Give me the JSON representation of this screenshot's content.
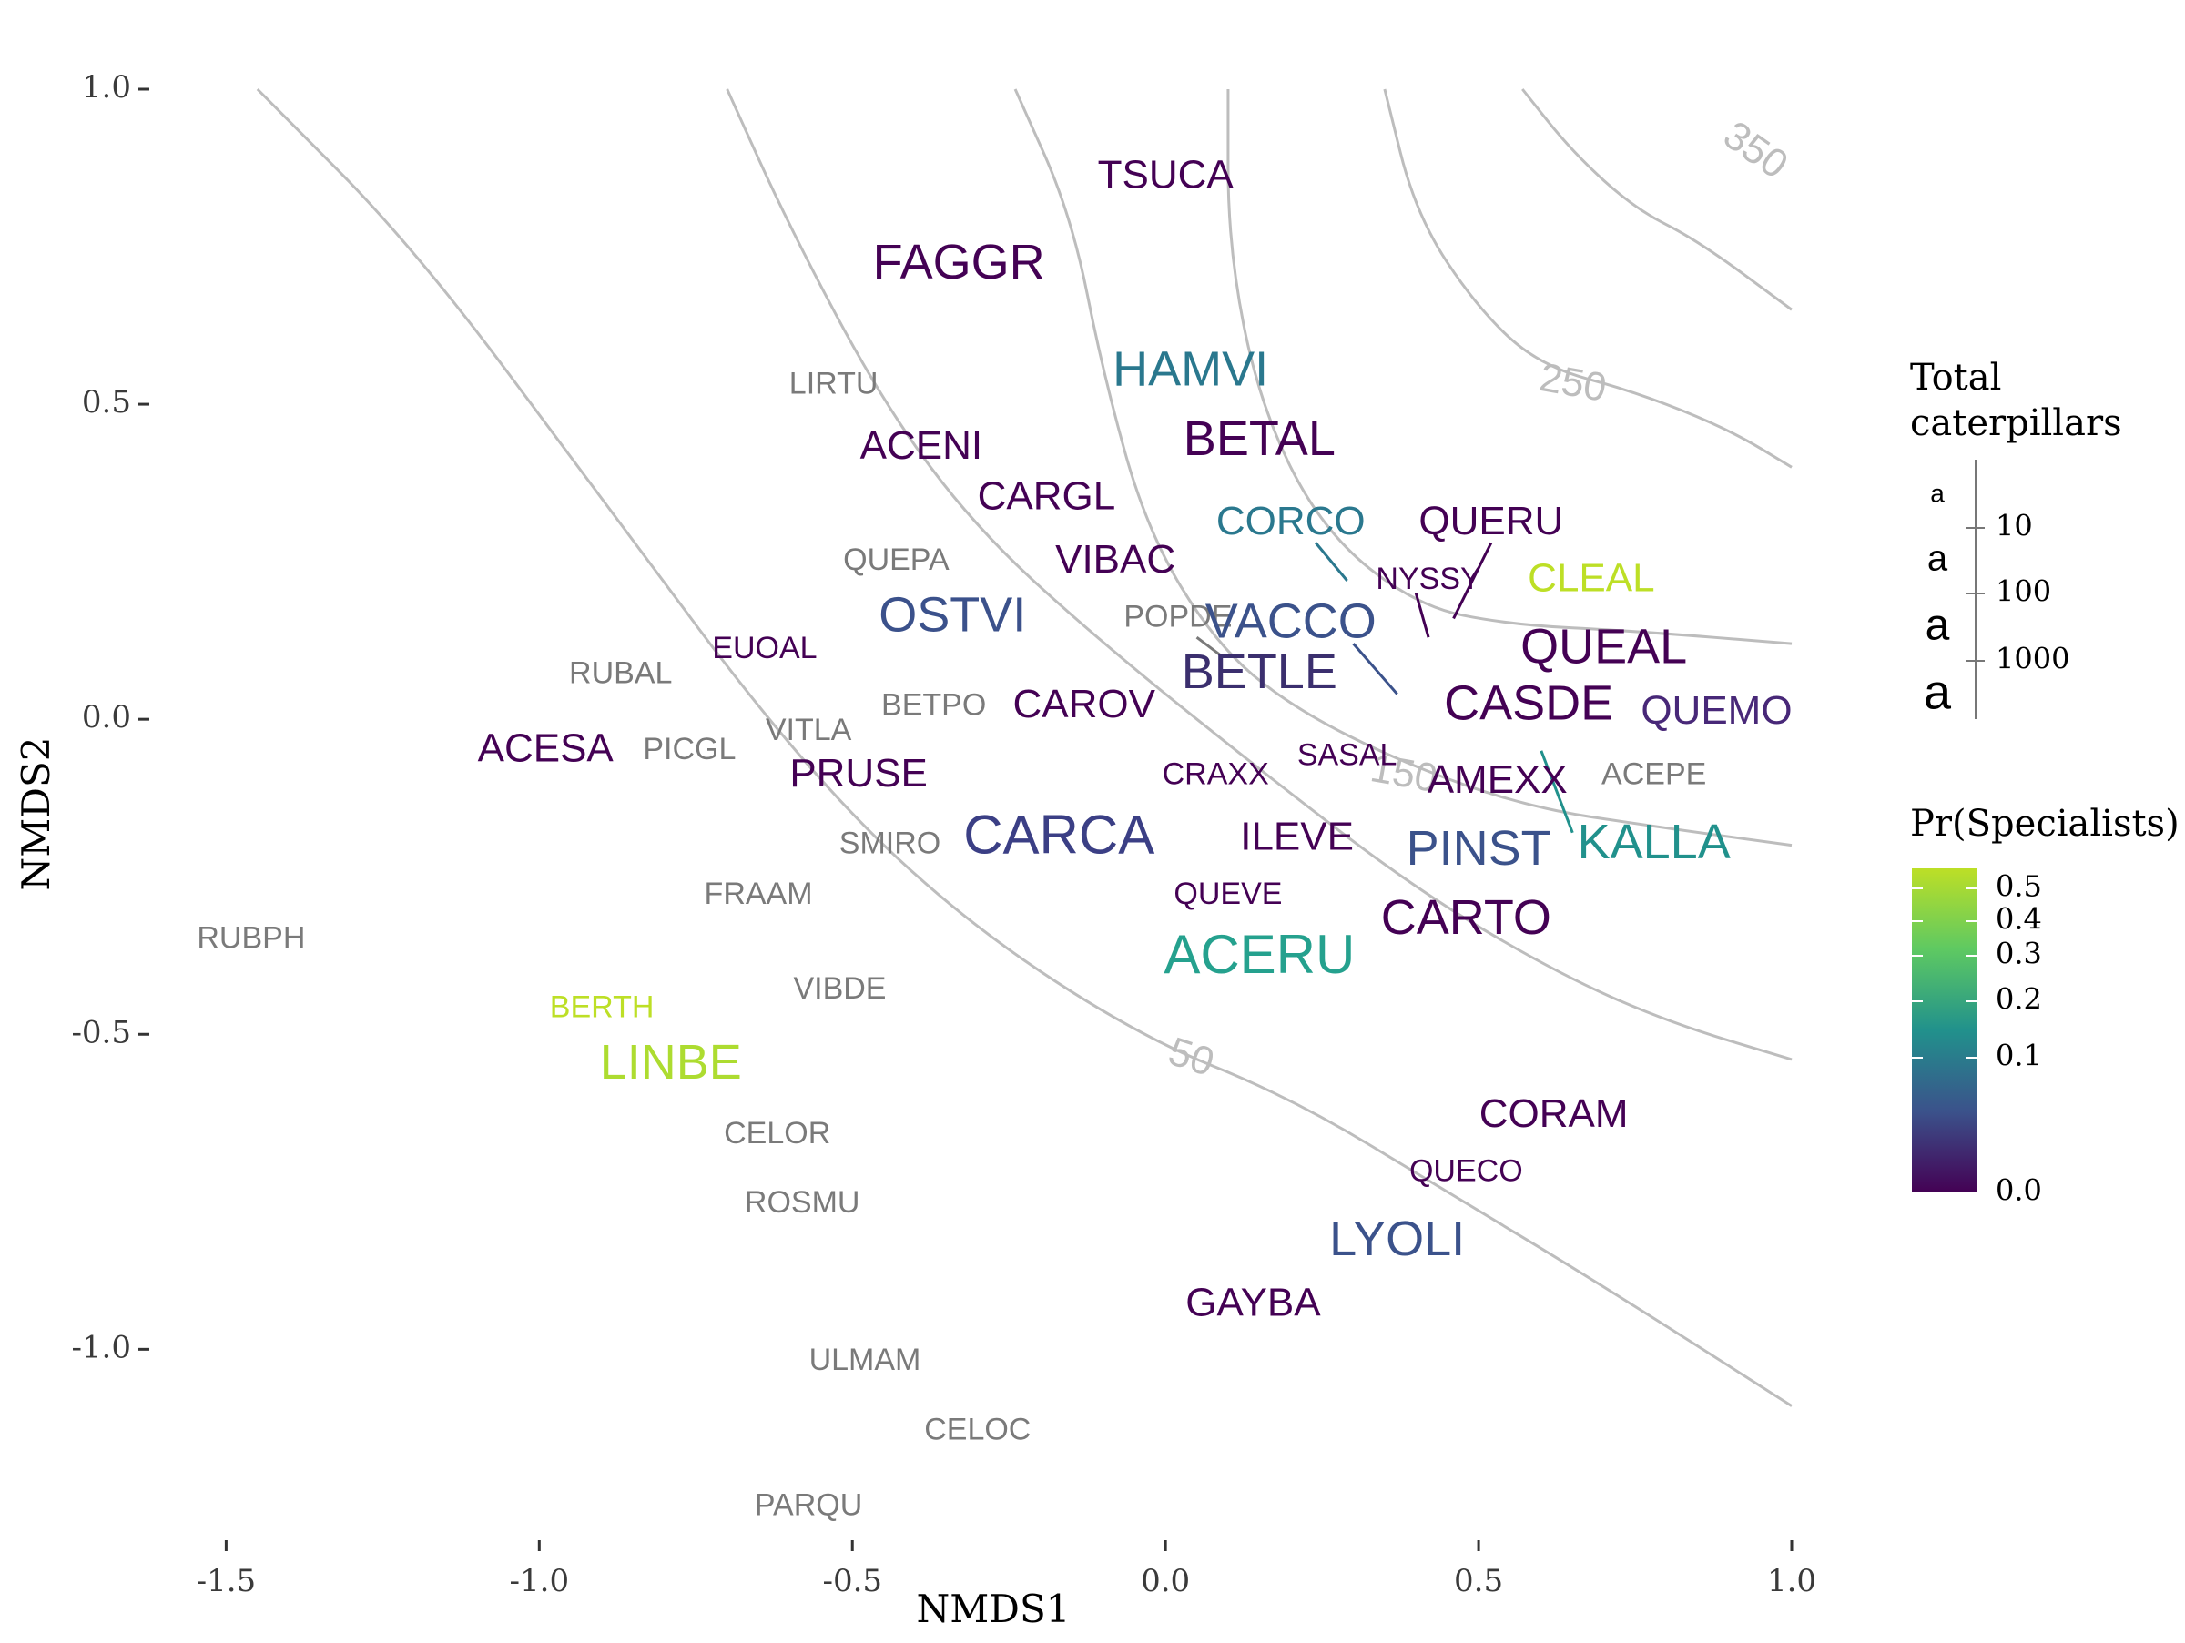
{
  "chart_data": {
    "type": "scatter",
    "xlabel": "NMDS1",
    "ylabel": "NMDS2",
    "xlim": [
      -1.55,
      1.0
    ],
    "ylim": [
      -1.3,
      1.0
    ],
    "xticks": [
      -1.5,
      -1.0,
      -0.5,
      0.0,
      0.5,
      1.0
    ],
    "xtick_labels": [
      "-1.5",
      "-1.0",
      "-0.5",
      "0.0",
      "0.5",
      "1.0"
    ],
    "yticks": [
      1.0,
      0.5,
      0.0,
      -0.5,
      -1.0
    ],
    "ytick_labels": [
      "1.0",
      "0.5",
      "0.0",
      "-0.5",
      "-1.0"
    ],
    "grid": false,
    "points": [
      {
        "label": "TSUCA",
        "x": 0.0,
        "y": 0.86,
        "size": 10,
        "color": "#440154"
      },
      {
        "label": "FAGGR",
        "x": -0.33,
        "y": 0.72,
        "size": 100,
        "color": "#440154"
      },
      {
        "label": "HAMVI",
        "x": 0.04,
        "y": 0.55,
        "size": 100,
        "color": "#2a788e"
      },
      {
        "label": "LIRTU",
        "x": -0.53,
        "y": 0.53,
        "color": "#7a7a7a"
      },
      {
        "label": "BETAL",
        "x": 0.15,
        "y": 0.44,
        "size": 100,
        "color": "#440154"
      },
      {
        "label": "ACENI",
        "x": -0.39,
        "y": 0.43,
        "size": 10,
        "color": "#440154"
      },
      {
        "label": "CARGL",
        "x": -0.19,
        "y": 0.35,
        "size": 10,
        "color": "#440154"
      },
      {
        "label": "CORCO",
        "x": 0.2,
        "y": 0.31,
        "size": 10,
        "color": "#2a788e"
      },
      {
        "label": "QUERU",
        "x": 0.52,
        "y": 0.31,
        "size": 10,
        "color": "#440154"
      },
      {
        "label": "QUEPA",
        "x": -0.43,
        "y": 0.25,
        "color": "#7a7a7a"
      },
      {
        "label": "VIBAC",
        "x": -0.08,
        "y": 0.25,
        "size": 10,
        "color": "#440154"
      },
      {
        "label": "NYSSY",
        "x": 0.42,
        "y": 0.22,
        "size": 1,
        "color": "#440154"
      },
      {
        "label": "CLEAL",
        "x": 0.68,
        "y": 0.22,
        "size": 10,
        "color": "#bddf26"
      },
      {
        "label": "OSTVI",
        "x": -0.34,
        "y": 0.16,
        "size": 100,
        "color": "#3b518b"
      },
      {
        "label": "POPDE",
        "x": 0.02,
        "y": 0.16,
        "color": "#7a7a7a"
      },
      {
        "label": "VACCO",
        "x": 0.2,
        "y": 0.15,
        "size": 100,
        "color": "#3b528b"
      },
      {
        "label": "QUEAL",
        "x": 0.7,
        "y": 0.11,
        "size": 100,
        "color": "#440154"
      },
      {
        "label": "EUOAL",
        "x": -0.64,
        "y": 0.11,
        "size": 1,
        "color": "#440154"
      },
      {
        "label": "RUBAL",
        "x": -0.87,
        "y": 0.07,
        "color": "#7a7a7a"
      },
      {
        "label": "BETLE",
        "x": 0.15,
        "y": 0.07,
        "size": 100,
        "color": "#3b2f6e"
      },
      {
        "label": "CASDE",
        "x": 0.58,
        "y": 0.02,
        "size": 100,
        "color": "#440154"
      },
      {
        "label": "CAROV",
        "x": -0.13,
        "y": 0.02,
        "size": 10,
        "color": "#440154"
      },
      {
        "label": "BETPO",
        "x": -0.37,
        "y": 0.02,
        "color": "#7a7a7a"
      },
      {
        "label": "QUEMO",
        "x": 0.88,
        "y": 0.01,
        "size": 10,
        "color": "#482878"
      },
      {
        "label": "VITLA",
        "x": -0.57,
        "y": -0.02,
        "color": "#7a7a7a"
      },
      {
        "label": "ACESA",
        "x": -0.99,
        "y": -0.05,
        "size": 10,
        "color": "#440154"
      },
      {
        "label": "PICGL",
        "x": -0.76,
        "y": -0.05,
        "color": "#7a7a7a"
      },
      {
        "label": "SASAL",
        "x": 0.29,
        "y": -0.06,
        "size": 1,
        "color": "#440154"
      },
      {
        "label": "PRUSE",
        "x": -0.49,
        "y": -0.09,
        "size": 10,
        "color": "#440154"
      },
      {
        "label": "CRAXX",
        "x": 0.08,
        "y": -0.09,
        "size": 1,
        "color": "#440154"
      },
      {
        "label": "AMEXX",
        "x": 0.53,
        "y": -0.1,
        "size": 10,
        "color": "#440154"
      },
      {
        "label": "ACEPE",
        "x": 0.78,
        "y": -0.09,
        "color": "#7a7a7a"
      },
      {
        "label": "CARCA",
        "x": -0.17,
        "y": -0.19,
        "size": 1000,
        "color": "#3b3f85"
      },
      {
        "label": "SMIRO",
        "x": -0.44,
        "y": -0.2,
        "color": "#7a7a7a"
      },
      {
        "label": "ILEVE",
        "x": 0.21,
        "y": -0.19,
        "size": 10,
        "color": "#440154"
      },
      {
        "label": "PINST",
        "x": 0.5,
        "y": -0.21,
        "size": 100,
        "color": "#3b528b"
      },
      {
        "label": "KALLA",
        "x": 0.78,
        "y": -0.2,
        "size": 100,
        "color": "#21918c"
      },
      {
        "label": "FRAAM",
        "x": -0.65,
        "y": -0.28,
        "color": "#7a7a7a"
      },
      {
        "label": "QUEVE",
        "x": 0.1,
        "y": -0.28,
        "size": 1,
        "color": "#440154"
      },
      {
        "label": "CARTO",
        "x": 0.48,
        "y": -0.32,
        "size": 100,
        "color": "#440154"
      },
      {
        "label": "ACERU",
        "x": 0.15,
        "y": -0.38,
        "size": 1000,
        "color": "#25a18e"
      },
      {
        "label": "RUBPH",
        "x": -1.46,
        "y": -0.35,
        "color": "#7a7a7a"
      },
      {
        "label": "VIBDE",
        "x": -0.52,
        "y": -0.43,
        "color": "#7a7a7a"
      },
      {
        "label": "BERTH",
        "x": -0.9,
        "y": -0.46,
        "size": 1,
        "color": "#bddf26"
      },
      {
        "label": "LINBE",
        "x": -0.79,
        "y": -0.55,
        "size": 100,
        "color": "#addc30"
      },
      {
        "label": "CORAM",
        "x": 0.62,
        "y": -0.63,
        "size": 10,
        "color": "#440154"
      },
      {
        "label": "CELOR",
        "x": -0.62,
        "y": -0.66,
        "color": "#7a7a7a"
      },
      {
        "label": "QUECO",
        "x": 0.48,
        "y": -0.72,
        "size": 1,
        "color": "#440154"
      },
      {
        "label": "ROSMU",
        "x": -0.58,
        "y": -0.77,
        "color": "#7a7a7a"
      },
      {
        "label": "LYOLI",
        "x": 0.37,
        "y": -0.83,
        "size": 100,
        "color": "#3b528b"
      },
      {
        "label": "GAYBA",
        "x": 0.14,
        "y": -0.93,
        "size": 10,
        "color": "#440154"
      },
      {
        "label": "ULMAM",
        "x": -0.48,
        "y": -1.02,
        "color": "#7a7a7a"
      },
      {
        "label": "CELOC",
        "x": -0.3,
        "y": -1.13,
        "color": "#7a7a7a"
      },
      {
        "label": "PARQU",
        "x": -0.57,
        "y": -1.25,
        "color": "#7a7a7a"
      }
    ],
    "leader_lines": [
      {
        "from": [
          0.24,
          0.28
        ],
        "to": [
          0.29,
          0.22
        ],
        "color": "#2a788e"
      },
      {
        "from": [
          0.52,
          0.28
        ],
        "to": [
          0.46,
          0.16
        ],
        "color": "#440154"
      },
      {
        "from": [
          0.4,
          0.2
        ],
        "to": [
          0.42,
          0.13
        ],
        "color": "#440154"
      },
      {
        "from": [
          0.3,
          0.12
        ],
        "to": [
          0.37,
          0.04
        ],
        "color": "#3b528b"
      },
      {
        "from": [
          0.05,
          0.13
        ],
        "to": [
          0.09,
          0.1
        ],
        "color": "#7a7a7a"
      },
      {
        "from": [
          0.6,
          -0.05
        ],
        "to": [
          0.65,
          -0.18
        ],
        "color": "#21918c"
      }
    ],
    "contours": [
      {
        "level": 50,
        "label": "50",
        "points": [
          [
            -1.45,
            1.0
          ],
          [
            -1.2,
            0.75
          ],
          [
            -0.9,
            0.35
          ],
          [
            -0.6,
            -0.05
          ],
          [
            -0.35,
            -0.3
          ],
          [
            -0.05,
            -0.5
          ],
          [
            0.2,
            -0.6
          ],
          [
            0.45,
            -0.75
          ],
          [
            0.7,
            -0.9
          ],
          [
            1.0,
            -1.09
          ]
        ]
      },
      {
        "level": 100,
        "label": "",
        "points": [
          [
            -0.7,
            1.0
          ],
          [
            -0.6,
            0.78
          ],
          [
            -0.45,
            0.5
          ],
          [
            -0.3,
            0.3
          ],
          [
            -0.1,
            0.12
          ],
          [
            0.15,
            -0.08
          ],
          [
            0.4,
            -0.27
          ],
          [
            0.62,
            -0.4
          ],
          [
            0.8,
            -0.48
          ],
          [
            1.0,
            -0.54
          ]
        ]
      },
      {
        "level": 150,
        "label": "150",
        "points": [
          [
            -0.24,
            1.0
          ],
          [
            -0.15,
            0.8
          ],
          [
            -0.1,
            0.55
          ],
          [
            -0.03,
            0.3
          ],
          [
            0.08,
            0.12
          ],
          [
            0.2,
            0.02
          ],
          [
            0.38,
            -0.07
          ],
          [
            0.58,
            -0.14
          ],
          [
            0.78,
            -0.17
          ],
          [
            1.0,
            -0.2
          ]
        ]
      },
      {
        "level": 200,
        "label": "",
        "points": [
          [
            0.1,
            1.0
          ],
          [
            0.1,
            0.75
          ],
          [
            0.15,
            0.5
          ],
          [
            0.25,
            0.3
          ],
          [
            0.4,
            0.18
          ],
          [
            0.55,
            0.15
          ],
          [
            0.75,
            0.14
          ],
          [
            1.0,
            0.12
          ]
        ]
      },
      {
        "level": 250,
        "label": "250",
        "points": [
          [
            0.35,
            1.0
          ],
          [
            0.4,
            0.8
          ],
          [
            0.5,
            0.65
          ],
          [
            0.6,
            0.56
          ],
          [
            0.75,
            0.52
          ],
          [
            0.9,
            0.46
          ],
          [
            1.0,
            0.4
          ]
        ]
      },
      {
        "level": 350,
        "label": "350",
        "points": [
          [
            0.57,
            1.0
          ],
          [
            0.65,
            0.9
          ],
          [
            0.75,
            0.81
          ],
          [
            0.85,
            0.76
          ],
          [
            1.0,
            0.65
          ]
        ]
      }
    ],
    "legend_size": {
      "title": "Total\n caterpillars",
      "breaks": [
        "10",
        "100",
        "1000"
      ],
      "glyph": "a"
    },
    "legend_color": {
      "title": "Pr(Specialists)",
      "breaks": [
        "0.5",
        "0.4",
        "0.3",
        "0.2",
        "0.1",
        "0.0"
      ],
      "palette": [
        "#440154",
        "#3b528b",
        "#21918c",
        "#5ec962",
        "#bddf26"
      ]
    }
  }
}
